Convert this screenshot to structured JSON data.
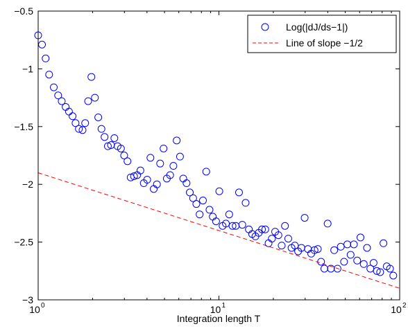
{
  "chart_data": {
    "type": "scatter",
    "title": "",
    "xlabel": "Integration length T",
    "ylabel": "",
    "xscale": "log",
    "xlim": [
      1,
      100
    ],
    "ylim": [
      -3,
      -0.5
    ],
    "grid": false,
    "legend_position": "top-right",
    "x_ticks": [
      {
        "value": 1,
        "base": "10",
        "exp": "0"
      },
      {
        "value": 10,
        "base": "10",
        "exp": "1"
      },
      {
        "value": 100,
        "base": "10",
        "exp": "2"
      }
    ],
    "y_ticks": [
      {
        "value": -3,
        "label": "−3"
      },
      {
        "value": -2.5,
        "label": "−2.5"
      },
      {
        "value": -2,
        "label": "−2"
      },
      {
        "value": -1.5,
        "label": "−1.5"
      },
      {
        "value": -1,
        "label": "−1"
      },
      {
        "value": -0.5,
        "label": "−0.5"
      }
    ],
    "series": [
      {
        "name": "Log(|dJ/ds−1|)",
        "marker": "open-circle",
        "color": "#0000ff",
        "points": [
          [
            1.0,
            -0.71
          ],
          [
            1.05,
            -0.79
          ],
          [
            1.1,
            -0.91
          ],
          [
            1.15,
            -1.05
          ],
          [
            1.22,
            -1.16
          ],
          [
            1.29,
            -1.23
          ],
          [
            1.35,
            -1.28
          ],
          [
            1.42,
            -1.33
          ],
          [
            1.48,
            -1.37
          ],
          [
            1.55,
            -1.41
          ],
          [
            1.61,
            -1.47
          ],
          [
            1.68,
            -1.52
          ],
          [
            1.76,
            -1.53
          ],
          [
            1.82,
            -1.47
          ],
          [
            1.89,
            -1.28
          ],
          [
            1.97,
            -1.07
          ],
          [
            2.06,
            -1.25
          ],
          [
            2.15,
            -1.42
          ],
          [
            2.24,
            -1.52
          ],
          [
            2.33,
            -1.59
          ],
          [
            2.43,
            -1.67
          ],
          [
            2.53,
            -1.66
          ],
          [
            2.64,
            -1.6
          ],
          [
            2.75,
            -1.67
          ],
          [
            2.87,
            -1.69
          ],
          [
            2.99,
            -1.75
          ],
          [
            3.12,
            -1.8
          ],
          [
            3.25,
            -1.94
          ],
          [
            3.39,
            -1.93
          ],
          [
            3.53,
            -1.92
          ],
          [
            3.68,
            -1.88
          ],
          [
            3.84,
            -1.99
          ],
          [
            4.01,
            -1.96
          ],
          [
            4.18,
            -1.77
          ],
          [
            4.36,
            -2.04
          ],
          [
            4.54,
            -2.0
          ],
          [
            4.73,
            -1.82
          ],
          [
            4.94,
            -1.69
          ],
          [
            5.15,
            -1.95
          ],
          [
            5.37,
            -1.92
          ],
          [
            5.6,
            -1.84
          ],
          [
            5.84,
            -1.62
          ],
          [
            6.09,
            -1.76
          ],
          [
            6.35,
            -1.95
          ],
          [
            6.62,
            -1.99
          ],
          [
            6.9,
            -2.07
          ],
          [
            7.2,
            -2.12
          ],
          [
            7.5,
            -2.17
          ],
          [
            7.82,
            -2.26
          ],
          [
            8.16,
            -2.14
          ],
          [
            8.51,
            -1.89
          ],
          [
            8.87,
            -2.22
          ],
          [
            9.25,
            -2.28
          ],
          [
            9.64,
            -2.32
          ],
          [
            10.05,
            -2.06
          ],
          [
            10.48,
            -2.36
          ],
          [
            10.93,
            -2.34
          ],
          [
            11.4,
            -2.26
          ],
          [
            11.89,
            -2.36
          ],
          [
            12.39,
            -2.36
          ],
          [
            12.92,
            -2.07
          ],
          [
            13.47,
            -2.35
          ],
          [
            14.05,
            -2.16
          ],
          [
            14.65,
            -2.39
          ],
          [
            15.27,
            -2.43
          ],
          [
            15.92,
            -2.45
          ],
          [
            16.6,
            -2.42
          ],
          [
            17.31,
            -2.39
          ],
          [
            18.05,
            -2.39
          ],
          [
            18.82,
            -2.51
          ],
          [
            19.63,
            -2.47
          ],
          [
            20.47,
            -2.41
          ],
          [
            21.34,
            -2.44
          ],
          [
            22.25,
            -2.53
          ],
          [
            23.2,
            -2.36
          ],
          [
            24.19,
            -2.47
          ],
          [
            25.22,
            -2.55
          ],
          [
            26.3,
            -2.53
          ],
          [
            27.42,
            -2.58
          ],
          [
            28.59,
            -2.55
          ],
          [
            29.81,
            -2.29
          ],
          [
            31.08,
            -2.56
          ],
          [
            32.41,
            -2.6
          ],
          [
            33.79,
            -2.57
          ],
          [
            35.24,
            -2.56
          ],
          [
            36.74,
            -2.67
          ],
          [
            38.31,
            -2.73
          ],
          [
            39.95,
            -2.34
          ],
          [
            41.65,
            -2.73
          ],
          [
            43.43,
            -2.57
          ],
          [
            45.29,
            -2.73
          ],
          [
            47.22,
            -2.54
          ],
          [
            49.24,
            -2.67
          ],
          [
            51.34,
            -2.52
          ],
          [
            53.53,
            -2.61
          ],
          [
            55.82,
            -2.52
          ],
          [
            58.2,
            -2.66
          ],
          [
            60.69,
            -2.46
          ],
          [
            63.28,
            -2.69
          ],
          [
            65.98,
            -2.55
          ],
          [
            68.8,
            -2.73
          ],
          [
            71.74,
            -2.68
          ],
          [
            74.8,
            -2.75
          ],
          [
            77.99,
            -2.76
          ],
          [
            81.32,
            -2.51
          ],
          [
            84.8,
            -2.71
          ],
          [
            88.42,
            -2.73
          ],
          [
            92.19,
            -2.79
          ]
        ]
      },
      {
        "name": "Line of slope −1/2",
        "style": "dashed-line",
        "color": "#ff0000",
        "points": [
          [
            1,
            -1.9
          ],
          [
            100,
            -2.9
          ]
        ]
      }
    ]
  }
}
